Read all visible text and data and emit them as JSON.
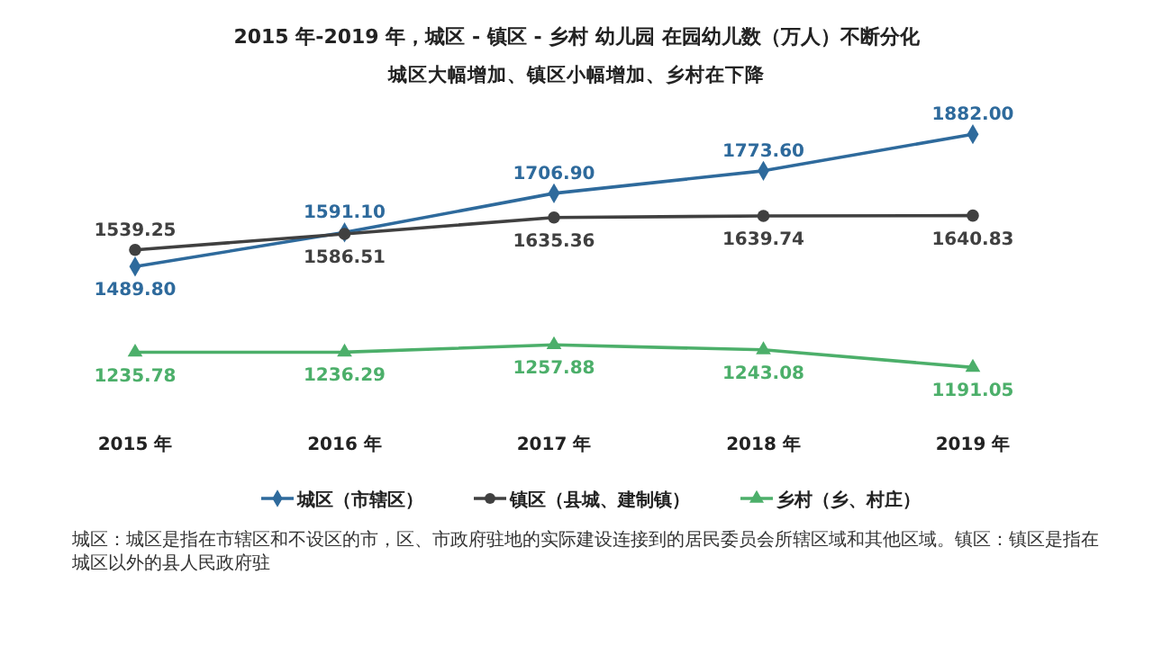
{
  "chart_data": {
    "type": "line",
    "title": "2015 年-2019 年，城区 - 镇区 - 乡村 幼儿园 在园幼儿数（万人）不断分化",
    "subtitle": "城区大幅增加、镇区小幅增加、乡村在下降",
    "categories": [
      "2015 年",
      "2016 年",
      "2017 年",
      "2018 年",
      "2019 年"
    ],
    "series": [
      {
        "name": "城区（市辖区）",
        "color": "#2e6a9c",
        "marker": "diamond",
        "values": [
          1489.8,
          1591.1,
          1706.9,
          1773.6,
          1882.0
        ],
        "value_labels": [
          "1489.80",
          "1591.10",
          "1706.90",
          "1773.60",
          "1882.00"
        ]
      },
      {
        "name": "镇区（县城、建制镇）",
        "color": "#404040",
        "marker": "circle",
        "values": [
          1539.25,
          1586.51,
          1635.36,
          1639.74,
          1640.83
        ],
        "value_labels": [
          "1539.25",
          "1586.51",
          "1635.36",
          "1639.74",
          "1640.83"
        ]
      },
      {
        "name": "乡村（乡、村庄）",
        "color": "#4caf6a",
        "marker": "triangle",
        "values": [
          1235.78,
          1236.29,
          1257.88,
          1243.08,
          1191.05
        ],
        "value_labels": [
          "1235.78",
          "1236.29",
          "1257.88",
          "1243.08",
          "1191.05"
        ]
      }
    ],
    "legend": "bottom",
    "grid": false,
    "tick_labels": "x",
    "annotations": [
      "城区：城区是指在市辖区和不设区的市，区、市政府驻地的实际建设连接到的居民委员会所辖区域和其他区域。镇区：镇区是指在城区以外的县人民政府驻"
    ]
  }
}
